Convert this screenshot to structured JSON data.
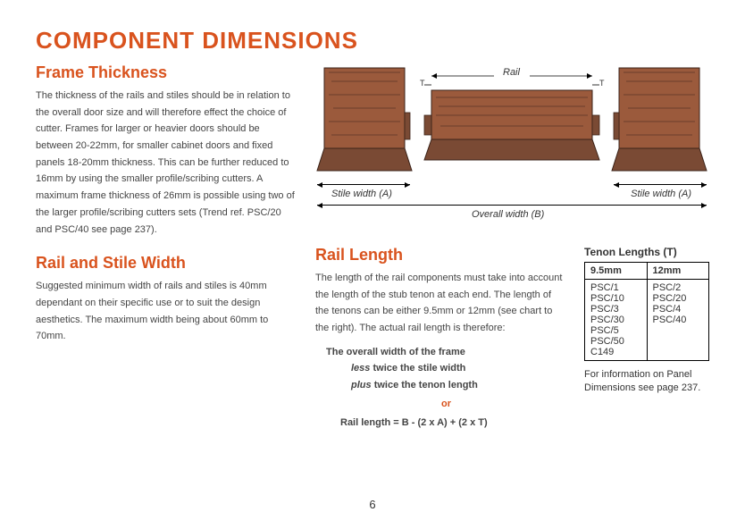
{
  "title": {
    "text": "COMPONENT DIMENSIONS",
    "color": "#d9531e",
    "fontsize": 26
  },
  "sectionHeading": {
    "color": "#d9531e",
    "fontsize": 18
  },
  "body": {
    "fontsize": 11,
    "color": "#444"
  },
  "frameThickness": {
    "heading": "Frame Thickness",
    "text": "The thickness of the rails and stiles should be in relation to the overall door size and will therefore effect the choice of cutter.  Frames for larger or heavier doors should be between 20-22mm, for smaller cabinet doors and fixed panels 18-20mm thickness.  This can be further reduced to 16mm by using the smaller profile/scribing cutters.  A maximum frame thickness of 26mm is possible using two of the larger profile/scribing cutters sets (Trend ref. PSC/20 and PSC/40 see page 237)."
  },
  "railStileWidth": {
    "heading": "Rail and Stile Width",
    "text": "Suggested minimum width of rails and stiles is 40mm dependant on their specific use or to suit the design aesthetics.  The maximum width being about 60mm to 70mm."
  },
  "diagram": {
    "railLabel": "Rail",
    "stileWidthLabel": "Stile width (A)",
    "overallWidthLabel": "Overall width (B)",
    "tMark": "T",
    "wood": {
      "face": "#9b5a3c",
      "end": "#7a4a34",
      "dark": "#6b3f2d",
      "outline": "#3a2218"
    }
  },
  "railLength": {
    "heading": "Rail Length",
    "text": "The length of the rail components must take into account the length of the stub tenon at each end.  The length of the tenons can be either 9.5mm or 12mm (see chart to the right).  The actual rail length is therefore:",
    "formula": {
      "line1": "The overall width of the frame",
      "line2": "less twice the stile width",
      "line2prefix": "less",
      "line3": "plus twice the tenon length",
      "line3prefix": "plus",
      "or": "or",
      "equation": "Rail length = B - (2 x A) + (2 x T)"
    }
  },
  "tenon": {
    "label": "Tenon Lengths (T)",
    "col1": "9.5mm",
    "col2": "12mm",
    "rows1": [
      "PSC/1",
      "PSC/10",
      "PSC/3",
      "PSC/30",
      "PSC/5",
      "PSC/50",
      "C149"
    ],
    "rows2": [
      "PSC/2",
      "PSC/20",
      "PSC/4",
      "PSC/40"
    ],
    "note": "For information on Panel Dimensions see page 237."
  },
  "pageNum": "6"
}
